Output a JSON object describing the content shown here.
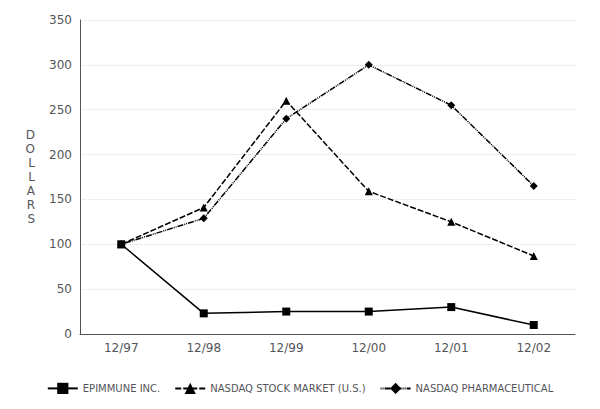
{
  "chart_data": {
    "type": "line",
    "y_label": "DOLLARS",
    "categories": [
      "12/97",
      "12/98",
      "12/99",
      "12/00",
      "12/01",
      "12/02"
    ],
    "series": [
      {
        "name": "EPIMMUNE INC.",
        "color": "#000000",
        "marker": "square",
        "line_style": "solid",
        "values": [
          100,
          23,
          25,
          25,
          30,
          10
        ]
      },
      {
        "name": "NASDAQ STOCK MARKET (U.S.)",
        "color": "#000000",
        "marker": "triangle",
        "line_style": "dashed",
        "values": [
          100,
          141,
          260,
          159,
          125,
          87
        ]
      },
      {
        "name": "NASDAQ PHARMACEUTICAL",
        "color": "#000000",
        "marker": "diamond",
        "line_style": "dashdotdot",
        "values": [
          100,
          129,
          240,
          300,
          255,
          165
        ]
      }
    ],
    "ylim": [
      0,
      350
    ],
    "yticks": [
      0,
      50,
      100,
      150,
      200,
      250,
      300,
      350
    ],
    "grid": true,
    "legend": "bottom"
  }
}
